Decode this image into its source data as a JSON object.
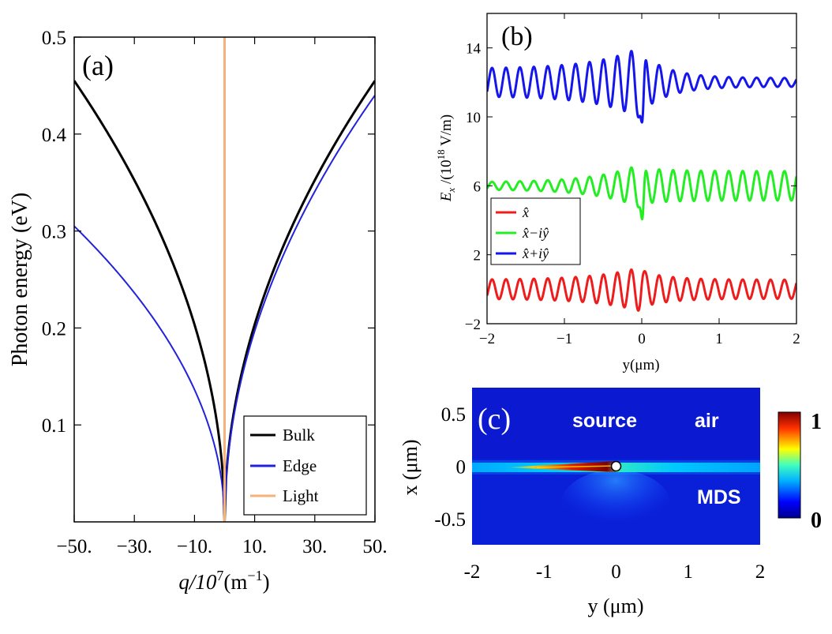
{
  "chart_data": [
    {
      "panel": "(a)",
      "type": "line",
      "xlabel": "q/10^7(m^-1)",
      "xlabel_main": "q/10",
      "xlabel_exp": "7",
      "xlabel_unit": "(m",
      "xlabel_unit_exp": "−1",
      "xlabel_close": ")",
      "ylabel": "Photon energy (eV)",
      "xlim": [
        -50,
        50
      ],
      "ylim": [
        0,
        0.5
      ],
      "xticks": [
        -50,
        -30,
        -10,
        10,
        30,
        50
      ],
      "xtick_labels": [
        "−50.",
        "−30.",
        "−10.",
        "10.",
        "30.",
        "50."
      ],
      "yticks": [
        0.1,
        0.2,
        0.3,
        0.4,
        0.5
      ],
      "ytick_labels": [
        "0.1",
        "0.2",
        "0.3",
        "0.4",
        "0.5"
      ],
      "legend_position": "bottom-right",
      "series": [
        {
          "name": "Bulk",
          "color": "#000000",
          "model": "sqrt",
          "left_at_edge": 0.455,
          "right_at_edge": 0.455
        },
        {
          "name": "Edge",
          "color": "#2222dd",
          "model": "sqrt",
          "left_at_edge": 0.305,
          "right_at_edge": 0.44
        },
        {
          "name": "Light",
          "color": "#f7b27a",
          "model": "vertical",
          "x": 0
        }
      ]
    },
    {
      "panel": "(b)",
      "type": "line",
      "xlabel": "y(μm)",
      "ylabel_main": "E",
      "ylabel_sub": "x",
      "ylabel_rest": " /(10",
      "ylabel_exp": "18",
      "ylabel_unit": " V/m)",
      "xlim": [
        -2,
        2
      ],
      "ylim": [
        -2,
        16
      ],
      "xticks": [
        -2,
        -1,
        0,
        1,
        2
      ],
      "xtick_labels": [
        "−2",
        "−1",
        "0",
        "1",
        "2"
      ],
      "yticks": [
        -2,
        2,
        6,
        10,
        14
      ],
      "ytick_labels": [
        "−2",
        "2",
        "6",
        "10",
        "14"
      ],
      "legend_position": "middle-left",
      "series": [
        {
          "name": "x̂",
          "color": "#ee1c1c",
          "offset": 0,
          "left_amp": 0.55,
          "right_amp": 0.55,
          "near_amp": 1.3,
          "spike": 0.3
        },
        {
          "name": "x̂−iŷ",
          "color": "#22ee22",
          "offset": 6,
          "left_amp": 0.2,
          "right_amp": 0.85,
          "near_amp": 1.3,
          "spike": -2.2
        },
        {
          "name": "x̂+iŷ",
          "color": "#1515ee",
          "offset": 12,
          "left_amp": 0.8,
          "right_amp": 0.25,
          "near_amp": 2.1,
          "spike": -2.7
        }
      ]
    },
    {
      "panel": "(c)",
      "type": "heatmap",
      "xlabel": "y (μm)",
      "ylabel": "x (μm)",
      "xlim": [
        -2,
        2
      ],
      "ylim": [
        -0.75,
        0.75
      ],
      "xticks": [
        -2,
        -1,
        0,
        1,
        2
      ],
      "xtick_labels": [
        "-2",
        "-1",
        "0",
        "1",
        "2"
      ],
      "yticks": [
        0.5,
        0,
        -0.5
      ],
      "ytick_labels": [
        "0.5",
        "0",
        "-0.5"
      ],
      "colorbar_range": [
        0,
        1
      ],
      "colorbar_labels": [
        "1",
        "0"
      ],
      "source_point": [
        0,
        0
      ],
      "annotations": [
        "source",
        "air",
        "MDS"
      ]
    }
  ]
}
